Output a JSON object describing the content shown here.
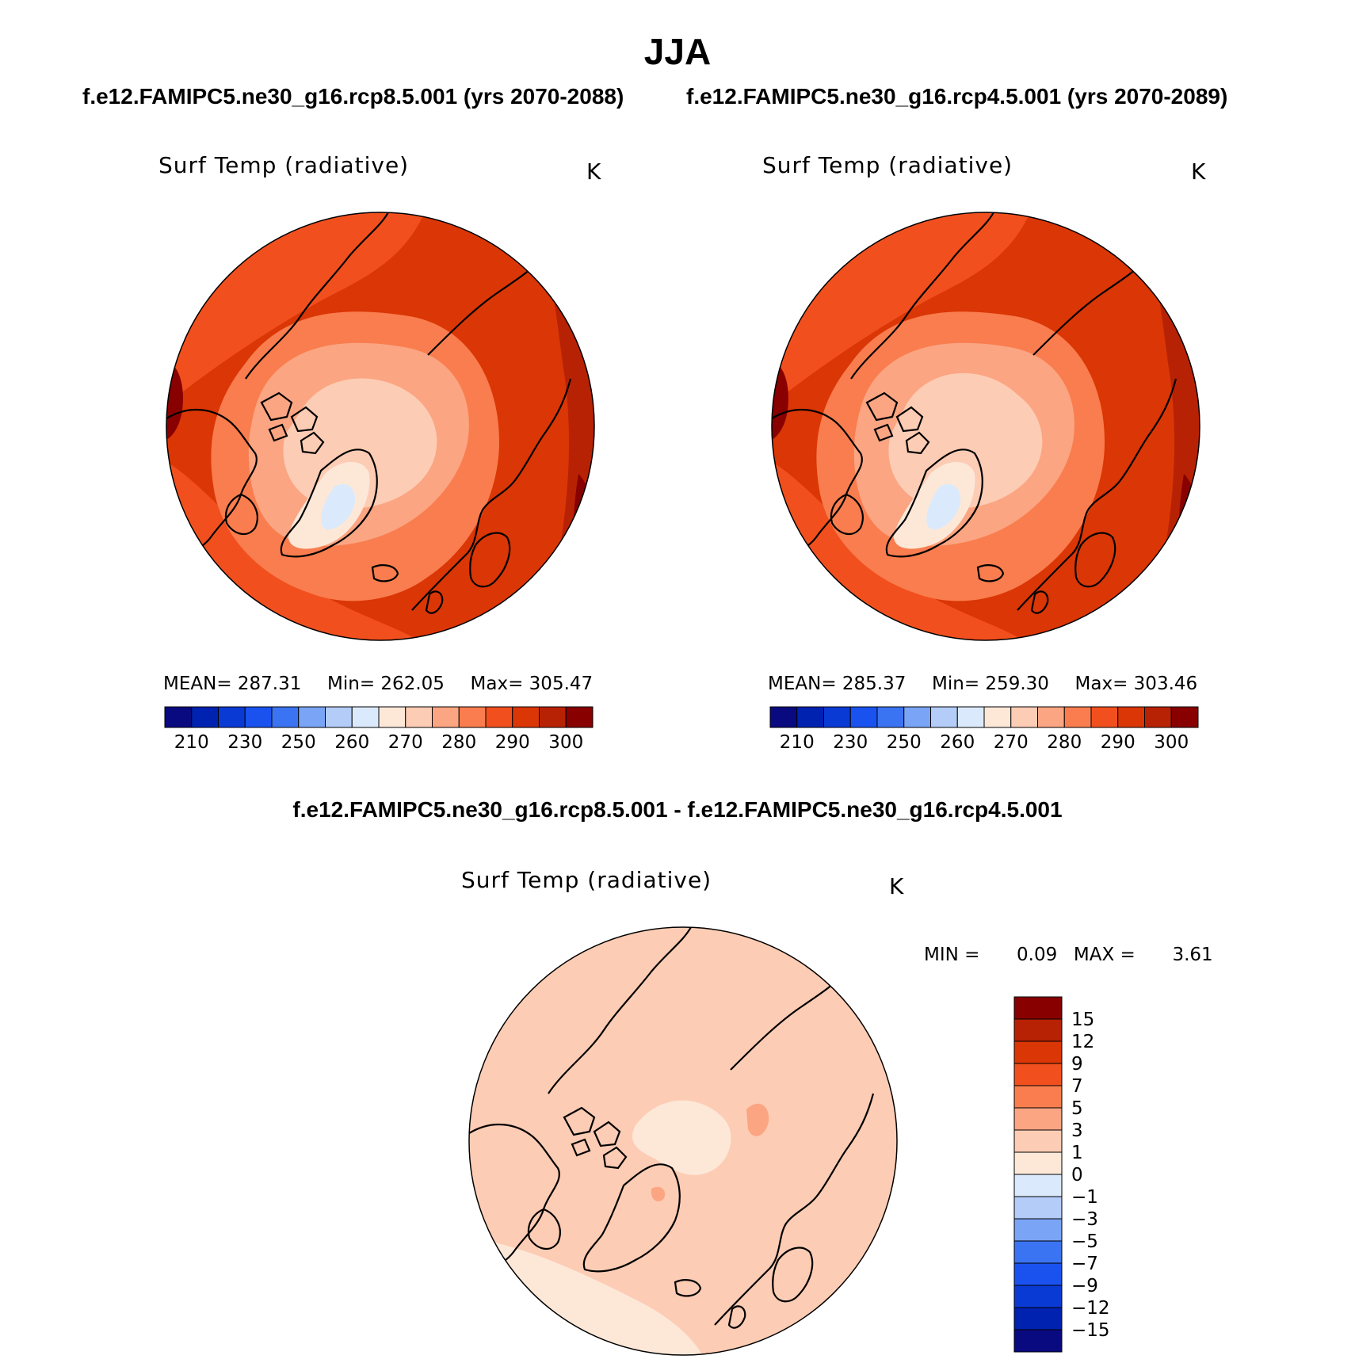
{
  "title": "JJA",
  "subtitles": {
    "left": "f.e12.FAMIPC5.ne30_g16.rcp8.5.001 (yrs 2070-2088)",
    "right": "f.e12.FAMIPC5.ne30_g16.rcp4.5.001 (yrs 2070-2089)"
  },
  "diff_title": "f.e12.FAMIPC5.ne30_g16.rcp8.5.001 - f.e12.FAMIPC5.ne30_g16.rcp4.5.001",
  "panels": [
    {
      "variable": "Surf Temp (radiative)",
      "units": "K",
      "mean_label": "MEAN=",
      "mean": "287.31",
      "min_label": "Min=",
      "min": "262.05",
      "max_label": "Max=",
      "max": "305.47"
    },
    {
      "variable": "Surf Temp (radiative)",
      "units": "K",
      "mean_label": "MEAN=",
      "mean": "285.37",
      "min_label": "Min=",
      "min": "259.30",
      "max_label": "Max=",
      "max": "303.46"
    },
    {
      "variable": "Surf Temp (radiative)",
      "units": "K",
      "min_label": "MIN =",
      "min": "0.09",
      "max_label": "MAX =",
      "max": "3.61"
    }
  ],
  "colorbar_abs": {
    "labels": [
      "210",
      "230",
      "250",
      "260",
      "270",
      "280",
      "290",
      "300"
    ],
    "colors": [
      "#0a0a80",
      "#0022b0",
      "#0a3ad4",
      "#1a52f0",
      "#3a74f2",
      "#7aa4f6",
      "#b4ccf8",
      "#daeafc",
      "#fde8d8",
      "#fdccb4",
      "#fba582",
      "#f97d4e",
      "#f1501e",
      "#db3606",
      "#b82204",
      "#880000"
    ]
  },
  "colorbar_diff": {
    "labels": [
      "15",
      "12",
      "9",
      "7",
      "5",
      "3",
      "1",
      "0",
      "−1",
      "−3",
      "−5",
      "−7",
      "−9",
      "−12",
      "−15"
    ],
    "colors": [
      "#880000",
      "#b82204",
      "#db3606",
      "#f1501e",
      "#f97d4e",
      "#fba582",
      "#fdccb4",
      "#fde8d8",
      "#daeafc",
      "#b4ccf8",
      "#7aa4f6",
      "#3a74f2",
      "#1a52f0",
      "#0a3ad4",
      "#0022b0",
      "#0a0a80"
    ]
  }
}
